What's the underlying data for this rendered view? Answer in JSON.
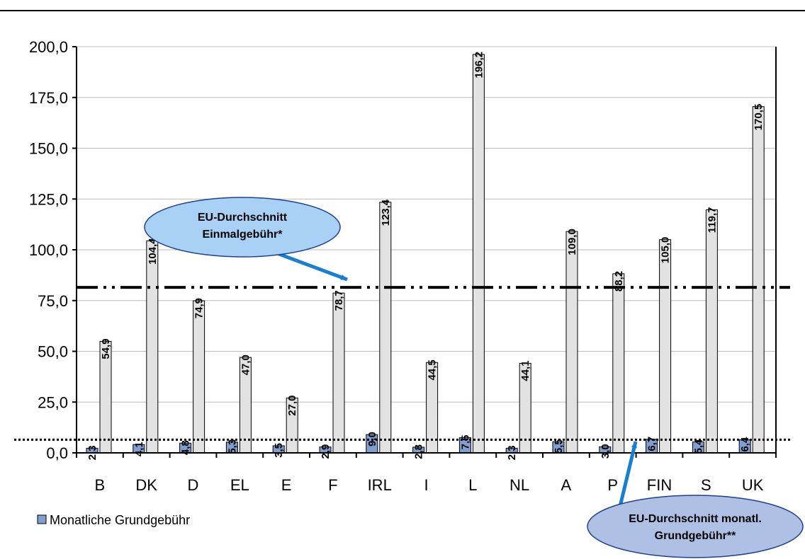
{
  "chart_data": {
    "type": "bar",
    "categories": [
      "B",
      "DK",
      "D",
      "EL",
      "E",
      "F",
      "IRL",
      "I",
      "L",
      "NL",
      "A",
      "P",
      "FIN",
      "S",
      "UK"
    ],
    "series": [
      {
        "name": "Monatliche Grundgebühr",
        "values": [
          2.3,
          4.1,
          4.8,
          5.3,
          3.5,
          2.9,
          9.0,
          2.8,
          7.5,
          2.3,
          5.5,
          3.0,
          6.7,
          5.4,
          6.4
        ],
        "labels": [
          "2,3",
          "4,1",
          "4,8",
          "5,3",
          "3,5",
          "2,9",
          "9,0",
          "2,8",
          "7,5",
          "2,3",
          "5,5",
          "3,0",
          "6,7",
          "5,4",
          "6,4"
        ],
        "color": "#7f9fd0"
      },
      {
        "values": [
          54.9,
          104.4,
          74.9,
          47.0,
          27.0,
          78.7,
          123.4,
          44.5,
          196.2,
          44.1,
          109.0,
          88.2,
          105.0,
          119.7,
          170.5
        ],
        "labels": [
          "54,9",
          "104,4",
          "74,9",
          "47,0",
          "27,0",
          "78,7",
          "123,4",
          "44,5",
          "196,2",
          "44,1",
          "109,0",
          "88,2",
          "105,0",
          "119,7",
          "170,5"
        ],
        "color": "#e2e2e2"
      }
    ],
    "ylim": [
      0,
      200
    ],
    "yticks": [
      0,
      25,
      50,
      75,
      100,
      125,
      150,
      175,
      200
    ],
    "ytick_labels": [
      "0,0",
      "25,0",
      "50,0",
      "75,0",
      "100,0",
      "125,0",
      "150,0",
      "175,0",
      "200,0"
    ],
    "grid": true,
    "reference_lines": [
      {
        "value": 81.5,
        "style": "dash-dot-dot"
      },
      {
        "value": 6.5,
        "style": "dotted"
      }
    ],
    "annotations": [
      {
        "lines": [
          "EU-Durchschnitt",
          "Einmalgebühr*"
        ],
        "color": "#a9d0f5"
      },
      {
        "lines": [
          "EU-Durchschnitt monatl.",
          "Grundgebühr**"
        ],
        "color": "#aec0e4"
      }
    ],
    "legend": {
      "position": "bottom-left",
      "entries": [
        "Monatliche Grundgebühr"
      ]
    }
  }
}
